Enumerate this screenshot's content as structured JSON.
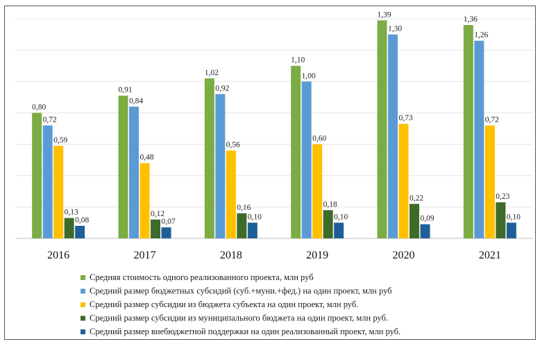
{
  "chart_data": {
    "type": "bar",
    "categories": [
      "2016",
      "2017",
      "2018",
      "2019",
      "2020",
      "2021"
    ],
    "series": [
      {
        "name": "Средняя стоимость одного реализованного проекта, млн руб",
        "color": "#7cac44",
        "values": [
          0.8,
          0.91,
          1.02,
          1.1,
          1.39,
          1.36
        ],
        "labels": [
          "0,80",
          "0,91",
          "1,02",
          "1,10",
          "1,39",
          "1,36"
        ]
      },
      {
        "name": "Средний размер бюджетных субсидий (суб.+муни.+фед.) на один проект, млн руб",
        "color": "#5b9bd5",
        "values": [
          0.72,
          0.84,
          0.92,
          1.0,
          1.3,
          1.26
        ],
        "labels": [
          "0,72",
          "0,84",
          "0,92",
          "1,00",
          "1,30",
          "1,26"
        ]
      },
      {
        "name": "Средний размер субсидии из бюджета субъекта на один проект, млн руб.",
        "color": "#ffc000",
        "values": [
          0.59,
          0.48,
          0.56,
          0.6,
          0.73,
          0.72
        ],
        "labels": [
          "0,59",
          "0,48",
          "0,56",
          "0,60",
          "0,73",
          "0,72"
        ]
      },
      {
        "name": "Средний размер субсидии из муниципального бюджета на один проект, млн руб.",
        "color": "#3f6b2a",
        "values": [
          0.13,
          0.12,
          0.16,
          0.18,
          0.22,
          0.23
        ],
        "labels": [
          "0,13",
          "0,12",
          "0,16",
          "0,18",
          "0,22",
          "0,23"
        ]
      },
      {
        "name": "Средний размер внебюджетной поддержки на один реализованный проект, млн руб.",
        "color": "#1f5f99",
        "values": [
          0.08,
          0.07,
          0.1,
          0.1,
          0.09,
          0.1
        ],
        "labels": [
          "0,08",
          "0,07",
          "0,10",
          "0,10",
          "0,09",
          "0,10"
        ]
      }
    ],
    "ylim": [
      0,
      1.4
    ],
    "grid": true,
    "legend_position": "bottom"
  }
}
